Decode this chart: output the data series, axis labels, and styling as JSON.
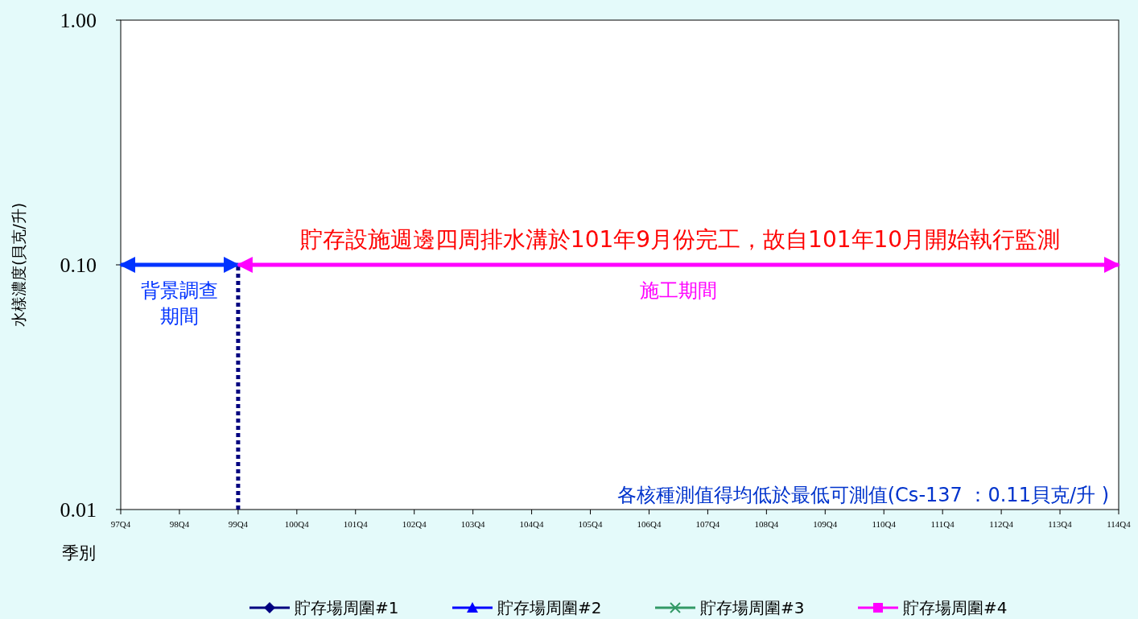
{
  "chart_data": {
    "type": "line",
    "ylabel": "水樣濃度(貝克/升)",
    "xlabel": "季別",
    "categories": [
      "97Q4",
      "98Q4",
      "99Q4",
      "100Q4",
      "101Q4",
      "102Q4",
      "103Q4",
      "104Q4",
      "105Q4",
      "106Q4",
      "107Q4",
      "108Q4",
      "109Q4",
      "110Q4",
      "111Q4",
      "112Q4",
      "113Q4",
      "114Q4"
    ],
    "series": [
      {
        "name": "貯存場周圍#1",
        "color": "#000080",
        "marker": "diamond",
        "values": [
          null,
          null,
          null,
          null,
          null,
          null,
          null,
          null,
          null,
          null,
          null,
          null,
          null,
          null,
          null,
          null,
          null,
          null
        ]
      },
      {
        "name": "貯存場周圍#2",
        "color": "#0000ff",
        "marker": "triangle",
        "values": [
          null,
          null,
          null,
          null,
          null,
          null,
          null,
          null,
          null,
          null,
          null,
          null,
          null,
          null,
          null,
          null,
          null,
          null
        ]
      },
      {
        "name": "貯存場周圍#3",
        "color": "#339966",
        "marker": "cross",
        "values": [
          null,
          null,
          null,
          null,
          null,
          null,
          null,
          null,
          null,
          null,
          null,
          null,
          null,
          null,
          null,
          null,
          null,
          null
        ]
      },
      {
        "name": "貯存場周圍#4",
        "color": "#ff00ff",
        "marker": "square",
        "values": [
          null,
          null,
          null,
          null,
          null,
          null,
          null,
          null,
          null,
          null,
          null,
          null,
          null,
          null,
          null,
          null,
          null,
          null
        ]
      },
      {
        "color": "#0033ff",
        "x": [
          "97Q4",
          "99Q4"
        ],
        "values": [
          0.1,
          0.1
        ]
      },
      {
        "color": "#ff00ff",
        "x": [
          "99Q4",
          "114Q4"
        ],
        "values": [
          0.1,
          0.1
        ]
      }
    ],
    "log": "y",
    "ylim": [
      0.01,
      1
    ],
    "yticks": [
      {
        "value": 0.01,
        "label": "0.01"
      },
      {
        "value": 0.1,
        "label": "0.10"
      },
      {
        "value": 1,
        "label": "1.00"
      }
    ],
    "legend": "bottom",
    "grid": false,
    "ref_lines": [
      {
        "axis": "x",
        "value": "99Q4",
        "color": "#000080",
        "line_style": "dotted"
      }
    ],
    "annotations": [
      "貯存設施週邊四周排水溝於101年9月份完工，故自101年10月開始執行監測",
      "各核種測值得均低於最低可測值(Cs-137 ：0.11貝克/升 )",
      "背景調查期間",
      "施工期間"
    ]
  }
}
